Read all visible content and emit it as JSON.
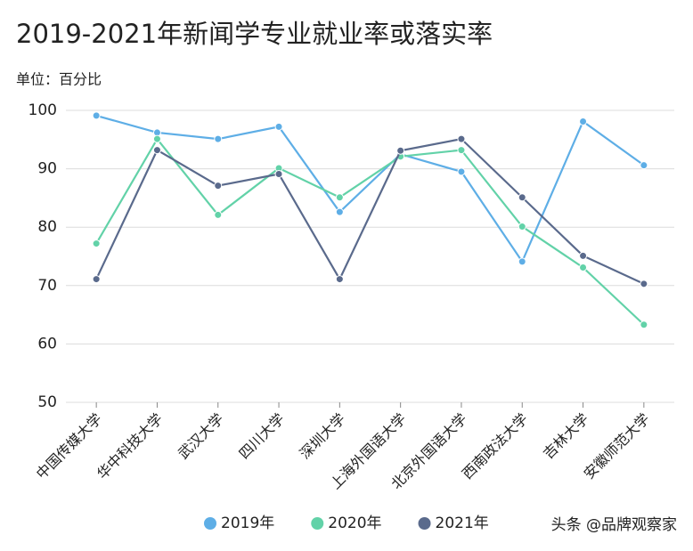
{
  "chart_data": {
    "type": "line",
    "title": "2019-2021年新闻学专业就业率或落实率",
    "subtitle": "单位：百分比",
    "watermark": "头条 @品牌观察家",
    "categories": [
      "中国传媒大学",
      "华中科技大学",
      "武汉大学",
      "四川大学",
      "深圳大学",
      "上海外国语大学",
      "北京外国语大学",
      "西南政法大学",
      "吉林大学",
      "安徽师范大学"
    ],
    "series": [
      {
        "name": "2019年",
        "color": "#5eaee6",
        "values": [
          99.1,
          96.2,
          95.1,
          97.2,
          82.6,
          92.5,
          89.5,
          74.1,
          98.1,
          90.6
        ]
      },
      {
        "name": "2020年",
        "color": "#62d2a8",
        "values": [
          77.2,
          95.1,
          82.1,
          90.1,
          85.1,
          92.1,
          93.2,
          80.1,
          73.1,
          63.3
        ]
      },
      {
        "name": "2021年",
        "color": "#5a6a8c",
        "values": [
          71.1,
          93.2,
          87.1,
          89.1,
          71.1,
          93.1,
          95.1,
          85.1,
          75.1,
          70.3
        ]
      }
    ],
    "ylim": [
      50,
      100
    ],
    "yticks": [
      50,
      60,
      70,
      80,
      90,
      100
    ],
    "grid": true,
    "legend": "bottom"
  }
}
